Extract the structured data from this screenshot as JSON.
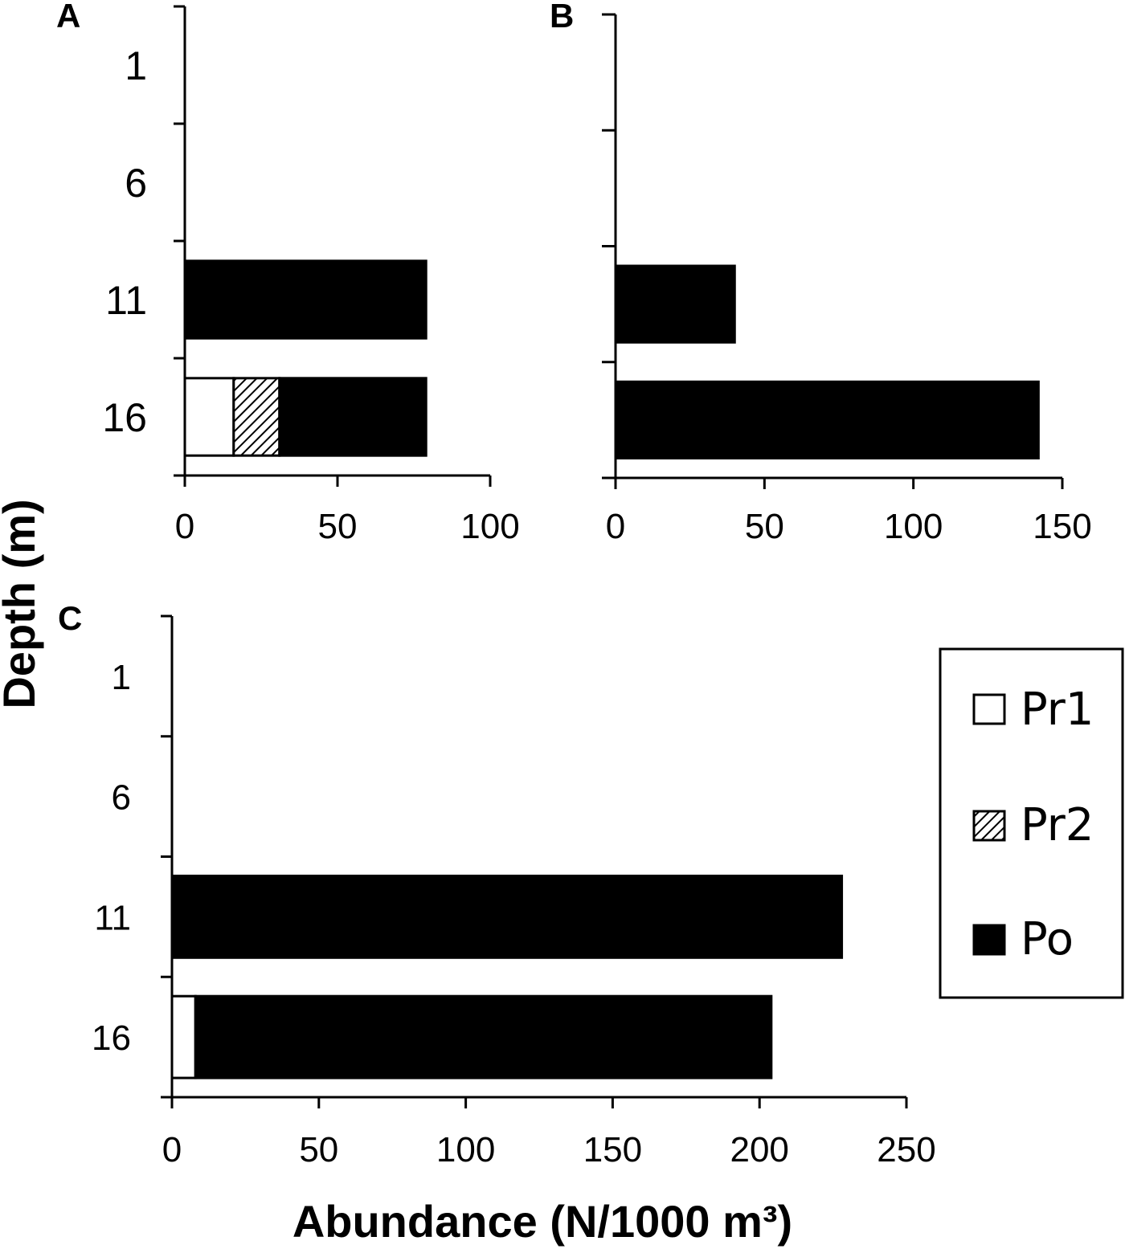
{
  "y_axis_title": "Depth (m)",
  "x_axis_title": "Abundance (N/1000 m³)",
  "legend": [
    {
      "label": "Pr1",
      "fill": "white"
    },
    {
      "label": "Pr2",
      "fill": "hatch"
    },
    {
      "label": "Po",
      "fill": "black"
    }
  ],
  "colors": {
    "Pr1": "#ffffff",
    "Pr2": "hatch",
    "Po": "#000000",
    "axis": "#000000"
  },
  "chart_data": [
    {
      "panel": "A",
      "type": "bar",
      "orientation": "horizontal",
      "stacked": true,
      "categories": [
        "1",
        "6",
        "11",
        "16"
      ],
      "series": [
        {
          "name": "Pr1",
          "values": [
            0,
            0,
            0,
            16
          ]
        },
        {
          "name": "Pr2",
          "values": [
            0,
            0,
            0,
            15
          ]
        },
        {
          "name": "Po",
          "values": [
            0,
            0,
            79,
            48
          ]
        }
      ],
      "xlim": [
        0,
        100
      ],
      "xticks": [
        0,
        50,
        100
      ]
    },
    {
      "panel": "B",
      "type": "bar",
      "orientation": "horizontal",
      "stacked": true,
      "categories": [
        "1",
        "6",
        "11",
        "16"
      ],
      "series": [
        {
          "name": "Pr1",
          "values": [
            0,
            0,
            0,
            0
          ]
        },
        {
          "name": "Pr2",
          "values": [
            0,
            0,
            0,
            0
          ]
        },
        {
          "name": "Po",
          "values": [
            0,
            0,
            40,
            142
          ]
        }
      ],
      "xlim": [
        0,
        150
      ],
      "xticks": [
        0,
        50,
        100,
        150
      ]
    },
    {
      "panel": "C",
      "type": "bar",
      "orientation": "horizontal",
      "stacked": true,
      "categories": [
        "1",
        "6",
        "11",
        "16"
      ],
      "series": [
        {
          "name": "Pr1",
          "values": [
            0,
            0,
            0,
            8
          ]
        },
        {
          "name": "Pr2",
          "values": [
            0,
            0,
            0,
            0
          ]
        },
        {
          "name": "Po",
          "values": [
            0,
            0,
            228,
            196
          ]
        }
      ],
      "xlim": [
        0,
        250
      ],
      "xticks": [
        0,
        50,
        100,
        150,
        200,
        250
      ]
    }
  ]
}
